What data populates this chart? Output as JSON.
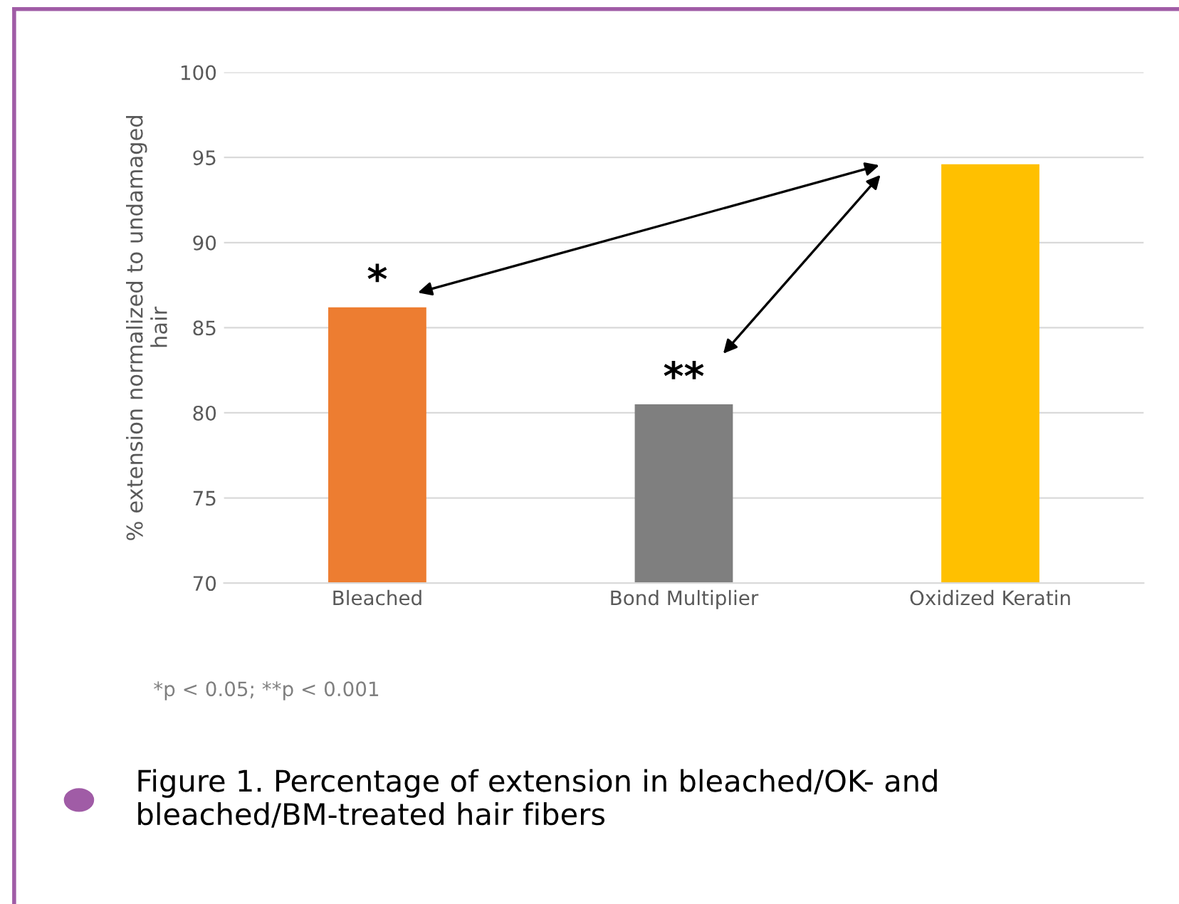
{
  "chart_data": {
    "type": "bar",
    "title": "Figure 1. Percentage of extension in bleached/OK- and bleached/BM-treated hair fibers",
    "ylabel": "% extension normalized to undamaged\nhair",
    "categories": [
      "Bleached",
      "Bond Multiplier",
      "Oxidized Keratin"
    ],
    "values": [
      86.2,
      80.5,
      94.6
    ],
    "colors": [
      "#ed7d31",
      "#7f7f7f",
      "#ffc000"
    ],
    "ylim": [
      70,
      100
    ],
    "yticks": [
      70,
      75,
      80,
      85,
      90,
      95,
      100
    ],
    "grid": "y",
    "annotations": [
      {
        "text": "*",
        "x": "Bleached",
        "y": 86.2
      },
      {
        "text": "**",
        "x": "Bond Multiplier",
        "y": 80.5
      },
      "*p < 0.05; **p < 0.001"
    ]
  }
}
